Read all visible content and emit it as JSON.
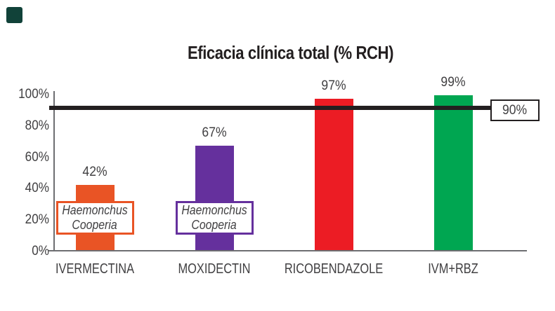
{
  "decor": {
    "corner_square_color": "#114239"
  },
  "chart_data": {
    "type": "bar",
    "title": "Eficacia clínica total (% RCH)",
    "categories": [
      "IVERMECTINA",
      "MOXIDECTIN",
      "RICOBENDAZOLE",
      "IVM+RBZ"
    ],
    "values": [
      42,
      67,
      97,
      99
    ],
    "value_labels": [
      "42%",
      "67%",
      "97%",
      "99%"
    ],
    "bar_colors": [
      "#E95425",
      "#65309D",
      "#EC1C24",
      "#00A651"
    ],
    "xlabel": "",
    "ylabel": "",
    "ylim": [
      0,
      100
    ],
    "ytick_labels": [
      "100%",
      "80%",
      "60%",
      "40%",
      "20%",
      "0%"
    ],
    "ytick_values": [
      100,
      80,
      60,
      40,
      20,
      0
    ],
    "grid": false,
    "legend": null,
    "threshold_line": {
      "value": 90,
      "label": "90%",
      "color": "#231F20"
    },
    "annotations": [
      {
        "target": "IVERMECTINA",
        "lines": [
          "Haemonchus",
          "Cooperia"
        ],
        "border_color": "#E95425"
      },
      {
        "target": "MOXIDECTIN",
        "lines": [
          "Haemonchus",
          "Cooperia"
        ],
        "border_color": "#65309D"
      }
    ],
    "text_color": "#414042",
    "axis_color": "#6D6E71"
  }
}
